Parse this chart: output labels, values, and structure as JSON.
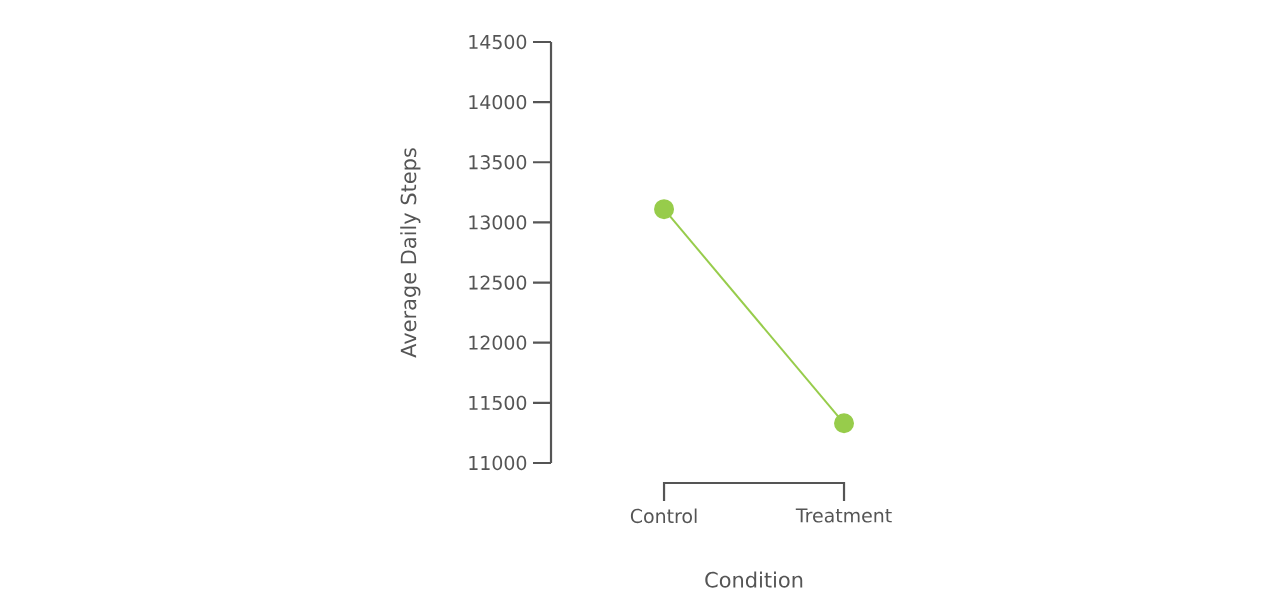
{
  "chart_data": {
    "type": "line",
    "xlabel": "Condition",
    "ylabel": "Average Daily Steps",
    "categories": [
      "Control",
      "Treatment"
    ],
    "values": [
      13110,
      11330
    ],
    "color": "#97cc4b",
    "ylim": [
      11000,
      14500
    ],
    "yticks": [
      11000,
      11500,
      12000,
      12500,
      13000,
      13500,
      14000,
      14500
    ],
    "grid": false,
    "marker": "circle",
    "line_style": "solid"
  }
}
